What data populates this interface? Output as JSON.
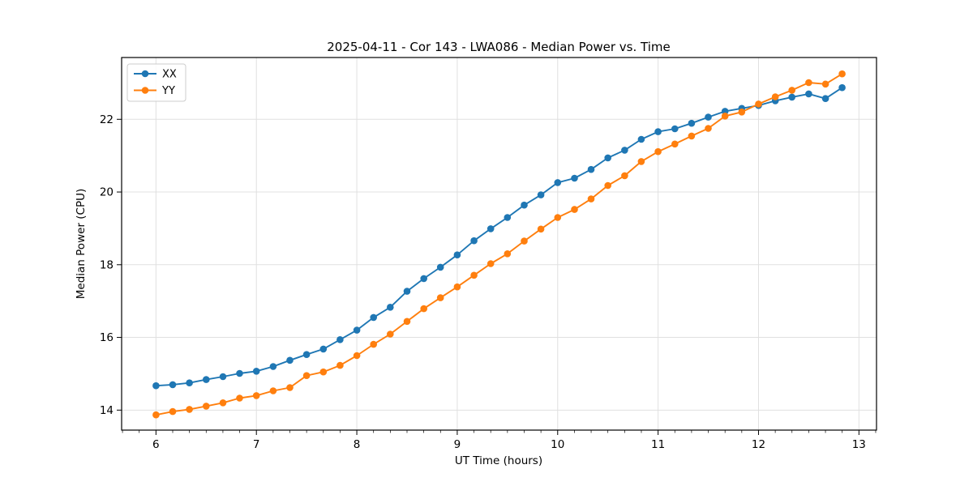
{
  "figure": {
    "background_color": "#ffffff",
    "grid_color": "#e0e0e0",
    "spine_color": "#000000"
  },
  "chart_data": {
    "type": "line",
    "title": "2025-04-11 - Cor 143 - LWA086 - Median Power vs. Time",
    "xlabel": "UT Time (hours)",
    "ylabel": "Median Power (CPU)",
    "xlim": [
      5.658,
      13.175
    ],
    "ylim": [
      13.45,
      23.7
    ],
    "x_ticks": [
      6,
      7,
      8,
      9,
      10,
      11,
      12,
      13
    ],
    "y_ticks": [
      14,
      16,
      18,
      20,
      22
    ],
    "x_minor_step": 0.1666667,
    "grid": true,
    "legend_position": "upper left",
    "x": [
      6.0,
      6.167,
      6.333,
      6.5,
      6.667,
      6.833,
      7.0,
      7.167,
      7.333,
      7.5,
      7.667,
      7.833,
      8.0,
      8.167,
      8.333,
      8.5,
      8.667,
      8.833,
      9.0,
      9.167,
      9.333,
      9.5,
      9.667,
      9.833,
      10.0,
      10.167,
      10.333,
      10.5,
      10.667,
      10.833,
      11.0,
      11.167,
      11.333,
      11.5,
      11.667,
      11.833,
      12.0,
      12.167,
      12.333,
      12.5,
      12.667,
      12.833
    ],
    "series": [
      {
        "name": "XX",
        "color": "#1f77b4",
        "values": [
          14.67,
          14.7,
          14.75,
          14.84,
          14.92,
          15.01,
          15.07,
          15.2,
          15.37,
          15.53,
          15.68,
          15.94,
          16.2,
          16.55,
          16.83,
          17.27,
          17.62,
          17.93,
          18.27,
          18.66,
          18.99,
          19.3,
          19.64,
          19.92,
          20.26,
          20.38,
          20.62,
          20.94,
          21.15,
          21.45,
          21.66,
          21.74,
          21.89,
          22.06,
          22.22,
          22.3,
          22.38,
          22.51,
          22.61,
          22.7,
          22.57,
          22.87
        ]
      },
      {
        "name": "YY",
        "color": "#ff7f0e",
        "values": [
          13.87,
          13.96,
          14.02,
          14.11,
          14.2,
          14.33,
          14.4,
          14.53,
          14.62,
          14.95,
          15.05,
          15.23,
          15.5,
          15.81,
          16.09,
          16.44,
          16.79,
          17.09,
          17.39,
          17.71,
          18.03,
          18.3,
          18.65,
          18.98,
          19.3,
          19.52,
          19.81,
          20.18,
          20.45,
          20.84,
          21.11,
          21.32,
          21.54,
          21.75,
          22.09,
          22.2,
          22.42,
          22.62,
          22.8,
          23.01,
          22.97,
          23.25
        ]
      }
    ]
  }
}
